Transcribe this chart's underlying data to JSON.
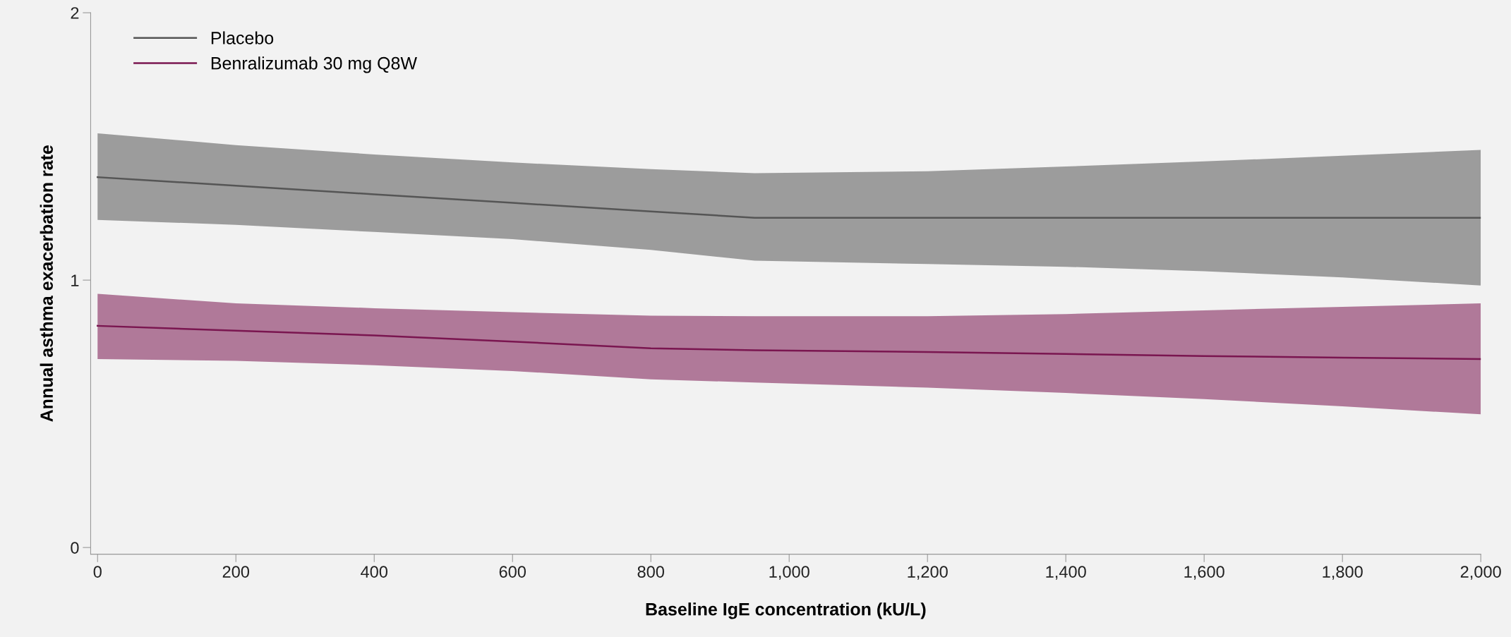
{
  "chart_data": {
    "type": "line",
    "xlabel": "Baseline IgE concentration (kU/L)",
    "ylabel": "Annual asthma exacerbation rate",
    "x": [
      0,
      200,
      400,
      600,
      800,
      950,
      1200,
      1400,
      1600,
      1800,
      2000
    ],
    "series": [
      {
        "name": "Placebo",
        "color": "#555555",
        "values": [
          1.385,
          1.353,
          1.321,
          1.289,
          1.257,
          1.233,
          1.233,
          1.233,
          1.233,
          1.233,
          1.233
        ],
        "lower": [
          1.225,
          1.207,
          1.18,
          1.153,
          1.113,
          1.073,
          1.06,
          1.05,
          1.033,
          1.01,
          0.98
        ],
        "upper": [
          1.549,
          1.505,
          1.47,
          1.44,
          1.415,
          1.4,
          1.407,
          1.425,
          1.444,
          1.465,
          1.487
        ]
      },
      {
        "name": "Benralizumab 30 mg Q8W",
        "color": "#7a1650",
        "values": [
          0.829,
          0.811,
          0.793,
          0.77,
          0.745,
          0.738,
          0.731,
          0.724,
          0.716,
          0.71,
          0.705
        ],
        "lower": [
          0.705,
          0.698,
          0.682,
          0.66,
          0.629,
          0.617,
          0.598,
          0.578,
          0.555,
          0.528,
          0.498
        ],
        "upper": [
          0.949,
          0.913,
          0.895,
          0.88,
          0.867,
          0.865,
          0.865,
          0.873,
          0.887,
          0.9,
          0.913
        ]
      }
    ],
    "xlim": [
      -10,
      2000
    ],
    "xticks": [
      0,
      200,
      400,
      600,
      {
        "value": 800,
        "label": "800"
      },
      {
        "value": 1000,
        "label": "1,000"
      },
      {
        "value": 1200,
        "label": "1,200"
      },
      {
        "value": 1400,
        "label": "1,400"
      },
      {
        "value": 1600,
        "label": "1,600"
      },
      {
        "value": 1800,
        "label": "1,800"
      },
      {
        "value": 2000,
        "label": "2,000"
      }
    ],
    "ylim": [
      -0.025,
      2
    ],
    "yticks": [
      0,
      1,
      2
    ],
    "grid": false,
    "legend": "top left",
    "marker": "none",
    "line_style": "solid"
  }
}
